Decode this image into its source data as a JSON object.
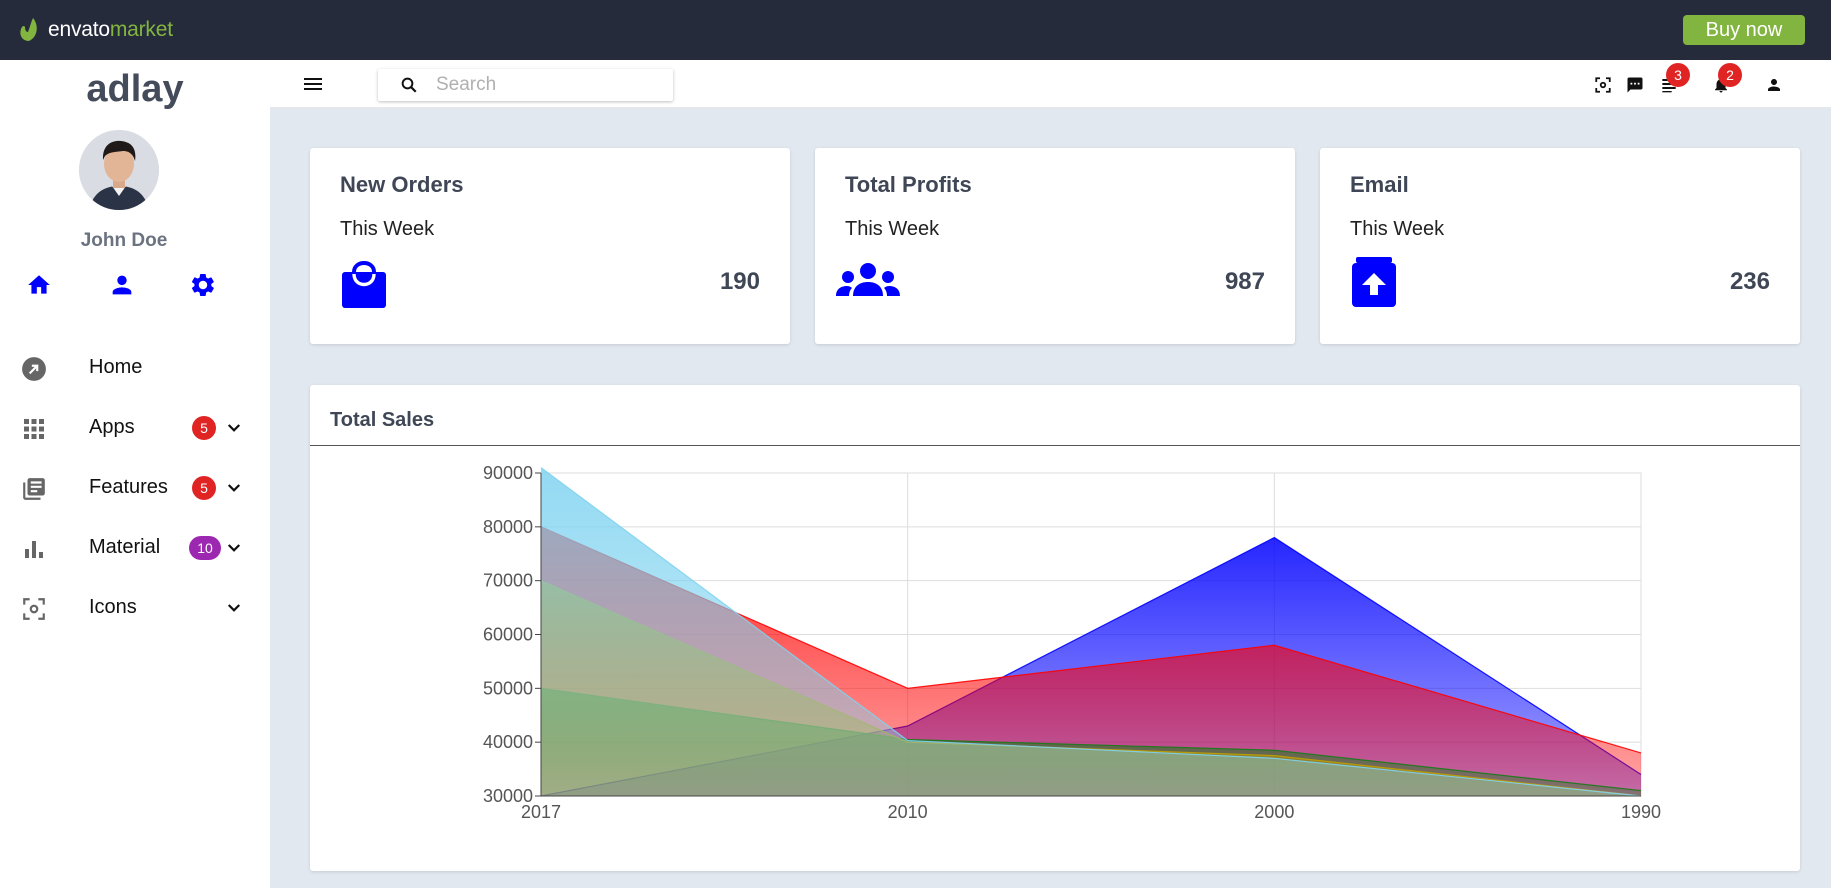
{
  "envato": {
    "logo_part1": "envato",
    "logo_part2": "market",
    "buy_now_label": "Buy now"
  },
  "sidebar": {
    "brand": "adlay",
    "user_name": "John Doe",
    "menu": [
      {
        "label": "Home",
        "icon": "arrow-circle-icon"
      },
      {
        "label": "Apps",
        "icon": "apps-grid-icon",
        "badge": "5",
        "badge_color": "#e02424"
      },
      {
        "label": "Features",
        "icon": "library-books-icon",
        "badge": "5",
        "badge_color": "#e02424"
      },
      {
        "label": "Material",
        "icon": "bar-chart-icon",
        "badge": "10",
        "badge_color": "#9c27b0"
      },
      {
        "label": "Icons",
        "icon": "center-focus-icon"
      }
    ]
  },
  "header": {
    "search_placeholder": "Search",
    "list_badge": "3",
    "notification_badge": "2"
  },
  "cards": [
    {
      "title": "New Orders",
      "subtitle": "This Week",
      "value": "190",
      "icon": "shopping-bag-icon"
    },
    {
      "title": "Total Profits",
      "subtitle": "This Week",
      "value": "987",
      "icon": "users-icon"
    },
    {
      "title": "Email",
      "subtitle": "This Week",
      "value": "236",
      "icon": "archive-upload-icon"
    }
  ],
  "colors": {
    "accent": "#0000ff",
    "envato_green": "#82b440",
    "top_bar": "#262b3b",
    "badge_red": "#e02424",
    "badge_purple": "#9c27b0"
  },
  "chart_data": {
    "type": "area",
    "title": "Total Sales",
    "categories": [
      "2017",
      "2010",
      "2000",
      "1990"
    ],
    "ylim": [
      30000,
      90000
    ],
    "yticks": [
      30000,
      40000,
      50000,
      60000,
      70000,
      80000,
      90000
    ],
    "grid": true,
    "series": [
      {
        "color": "#0000ff",
        "values": [
          30000,
          43000,
          78000,
          34000
        ]
      },
      {
        "color": "#ff0000",
        "values": [
          80000,
          50000,
          58000,
          38000
        ]
      },
      {
        "color": "#1a7a1a",
        "values": [
          50000,
          40500,
          38500,
          31000
        ]
      },
      {
        "color": "#c0a000",
        "values": [
          70000,
          40000,
          37500,
          30000
        ]
      },
      {
        "color": "#7fd3f0",
        "values": [
          91000,
          40300,
          37000,
          30000
        ]
      }
    ]
  }
}
